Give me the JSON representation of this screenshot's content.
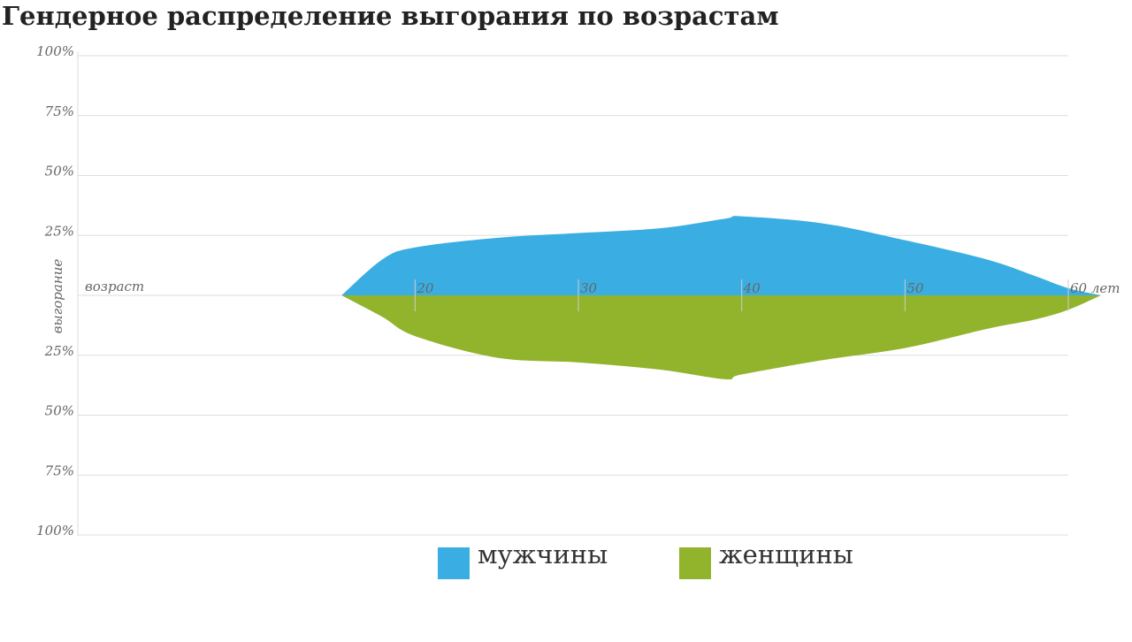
{
  "chart_data": {
    "type": "area",
    "title": "Гендерное распределение выгорания по возрастам",
    "x_label": "возраст",
    "y_label": "выгорание",
    "x": [
      15.5,
      18,
      20,
      25,
      30,
      35,
      39,
      40,
      45,
      50,
      55,
      58,
      60,
      62
    ],
    "series": [
      {
        "name": "мужчины",
        "color": "#3aaee2",
        "values": [
          0,
          15,
          20,
          24,
          26,
          28,
          32,
          33,
          30,
          23,
          15,
          8,
          3,
          0
        ]
      },
      {
        "name": "женщины",
        "color": "#92b42c",
        "values": [
          0,
          -9,
          -17,
          -26,
          -28,
          -31,
          -35,
          -33,
          -27,
          -22,
          -14,
          -10,
          -6,
          0
        ]
      }
    ],
    "xlim": [
      0,
      60
    ],
    "xticks": [
      20,
      30,
      40,
      50,
      {
        "value": 60,
        "label": "60 лет"
      }
    ],
    "ylim": [
      -100,
      100
    ],
    "yticks": [
      {
        "value": 100,
        "label": "100%"
      },
      {
        "value": 75,
        "label": "75%"
      },
      {
        "value": 50,
        "label": "50%"
      },
      {
        "value": 25,
        "label": "25%"
      },
      {
        "value": -25,
        "label": "25%"
      },
      {
        "value": -50,
        "label": "50%"
      },
      {
        "value": -75,
        "label": "75%"
      },
      {
        "value": -100,
        "label": "100%"
      }
    ],
    "grid": true,
    "legend": "bottom"
  }
}
